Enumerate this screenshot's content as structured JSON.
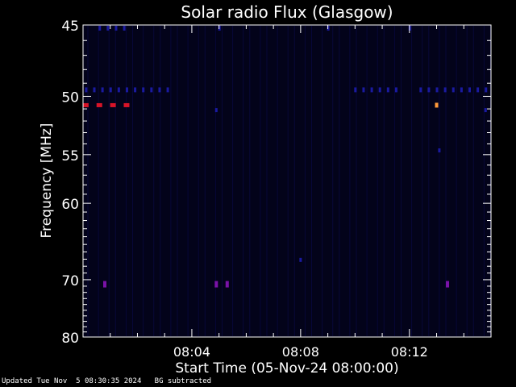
{
  "chart_data": {
    "type": "heatmap",
    "title": "Solar radio Flux (Glasgow)",
    "xlabel": "Start Time (05-Nov-24 08:00:00)",
    "ylabel": "Frequency [MHz]",
    "x_unit": "minutes after 08:00:00",
    "xlim": [
      0,
      15
    ],
    "ylim": [
      80,
      45
    ],
    "x_ticks": [
      {
        "value": 4,
        "label": "08:04"
      },
      {
        "value": 8,
        "label": "08:08"
      },
      {
        "value": 12,
        "label": "08:12"
      }
    ],
    "y_ticks": [
      {
        "value": 45,
        "label": "45"
      },
      {
        "value": 50,
        "label": "50"
      },
      {
        "value": 55,
        "label": "55"
      },
      {
        "value": 60,
        "label": "60"
      },
      {
        "value": 70,
        "label": "70"
      },
      {
        "value": 80,
        "label": "80"
      }
    ],
    "background_color": "#03031a",
    "colors": {
      "low": "#1a1aa0",
      "mid": "#7a12a8",
      "high": "#d81428",
      "peak": "#ff9a3a"
    },
    "bright_spots": [
      {
        "t": 0.1,
        "f": 50.7,
        "level": "high"
      },
      {
        "t": 0.6,
        "f": 50.7,
        "level": "high"
      },
      {
        "t": 1.1,
        "f": 50.7,
        "level": "high"
      },
      {
        "t": 1.6,
        "f": 50.7,
        "level": "high"
      },
      {
        "t": 13.0,
        "f": 50.7,
        "level": "peak"
      },
      {
        "t": 4.9,
        "f": 51.1,
        "level": "low"
      },
      {
        "t": 14.8,
        "f": 51.1,
        "level": "low"
      },
      {
        "t": 13.1,
        "f": 54.6,
        "level": "low"
      },
      {
        "t": 8.0,
        "f": 67.1,
        "level": "low"
      },
      {
        "t": 0.8,
        "f": 70.7,
        "level": "mid"
      },
      {
        "t": 4.9,
        "f": 70.7,
        "level": "mid"
      },
      {
        "t": 5.3,
        "f": 70.7,
        "level": "mid"
      },
      {
        "t": 13.4,
        "f": 70.7,
        "level": "mid"
      }
    ],
    "band_rows": [
      {
        "f": 49.5,
        "times": [
          0.1,
          0.4,
          0.7,
          1.0,
          1.3,
          1.6,
          1.9,
          2.2,
          2.5,
          2.8,
          3.1,
          10.0,
          10.3,
          10.6,
          10.9,
          11.2,
          11.5,
          12.4,
          12.7,
          13.0,
          13.3,
          13.6,
          13.9,
          14.2,
          14.5,
          14.8
        ]
      },
      {
        "f": 45.2,
        "times": [
          0.6,
          0.9,
          1.2,
          1.5,
          5.0,
          9.0,
          12.0
        ]
      }
    ]
  },
  "footer": {
    "updated": "Updated Tue Nov  5 08:30:35 2024",
    "note": "BG subtracted"
  }
}
